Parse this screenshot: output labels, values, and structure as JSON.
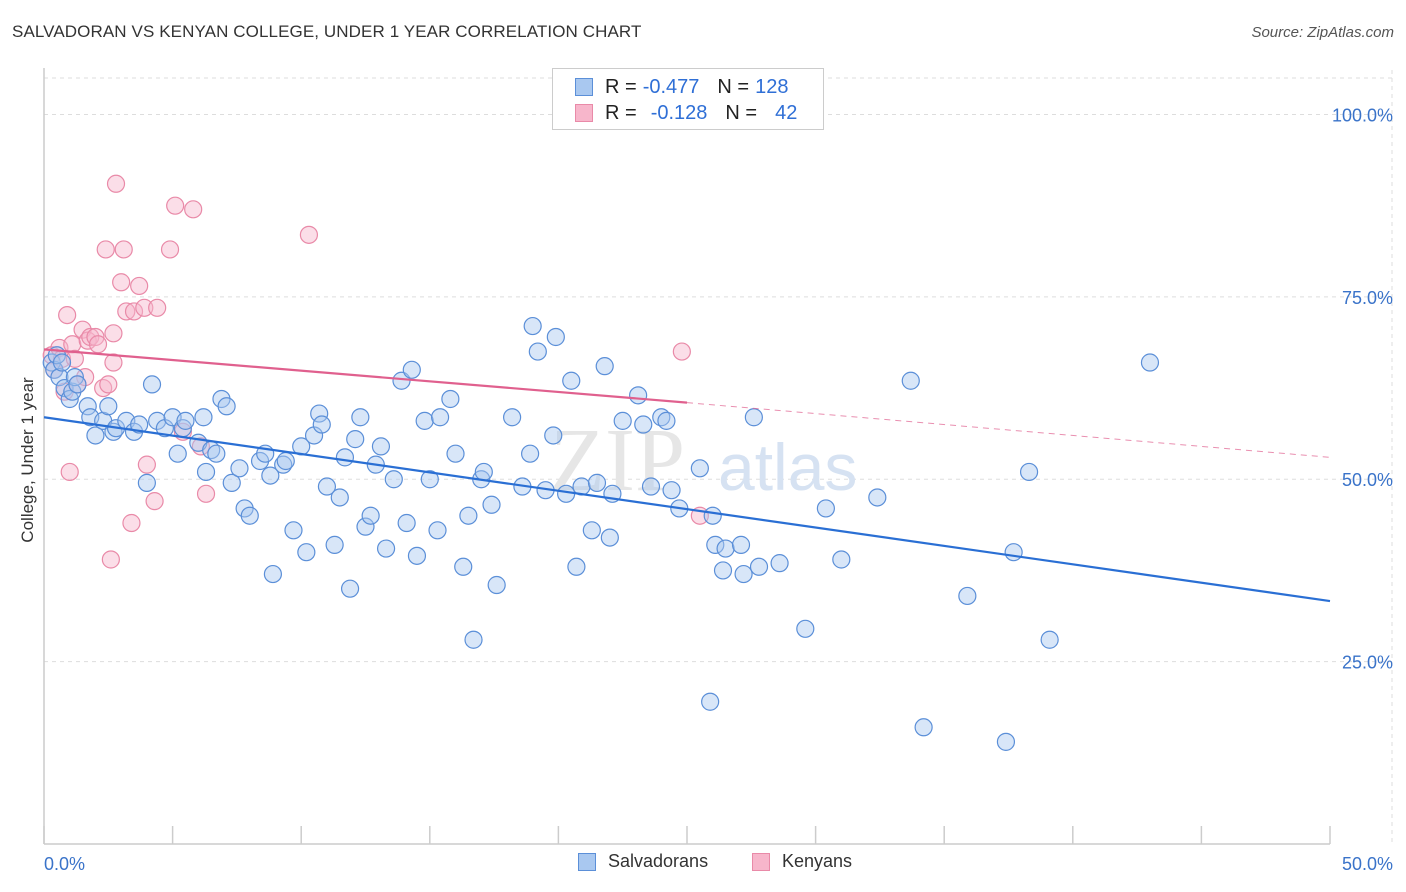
{
  "title": "SALVADORAN VS KENYAN COLLEGE, UNDER 1 YEAR CORRELATION CHART",
  "source": "Source: ZipAtlas.com",
  "watermark": {
    "zip": "ZIP",
    "atlas": "atlas"
  },
  "colors": {
    "blue_fill": "#a9c8f0",
    "blue_stroke": "#5b8fd8",
    "blue_line": "#2a6fd4",
    "pink_fill": "#f7b6cb",
    "pink_stroke": "#e98aa8",
    "pink_line": "#e0608e",
    "tick_label": "#3a73c9",
    "grid": "#dddddd"
  },
  "legend": {
    "rows": [
      {
        "r_label": "R =",
        "r_value": "-0.477",
        "n_label": "N =",
        "n_value": "128"
      },
      {
        "r_label": "R =",
        "r_value": "-0.128",
        "n_label": "N =",
        "n_value": "42"
      }
    ]
  },
  "bottom_legend": [
    "Salvadorans",
    "Kenyans"
  ],
  "chart_data": {
    "type": "scatter",
    "title": "SALVADORAN VS KENYAN COLLEGE, UNDER 1 YEAR CORRELATION CHART",
    "xlabel": "",
    "ylabel": "College, Under 1 year",
    "xlim": [
      0,
      50
    ],
    "ylim": [
      0,
      105
    ],
    "x_tick_labels": [
      "0.0%",
      "50.0%"
    ],
    "y_ticks": [
      25,
      50,
      75,
      100
    ],
    "y_tick_labels": [
      "25.0%",
      "50.0%",
      "75.0%",
      "100.0%"
    ],
    "series": [
      {
        "name": "Salvadorans",
        "r": -0.477,
        "n": 128,
        "trend": {
          "x": [
            0,
            50
          ],
          "y": [
            58.5,
            33.3
          ]
        },
        "points": [
          [
            0.3,
            66
          ],
          [
            0.4,
            65
          ],
          [
            0.5,
            67
          ],
          [
            0.6,
            64
          ],
          [
            0.7,
            66
          ],
          [
            0.8,
            62.5
          ],
          [
            1.0,
            61
          ],
          [
            1.1,
            62
          ],
          [
            1.2,
            64
          ],
          [
            1.3,
            63
          ],
          [
            1.7,
            60
          ],
          [
            1.8,
            58.5
          ],
          [
            2.0,
            56
          ],
          [
            2.3,
            58
          ],
          [
            2.5,
            60
          ],
          [
            2.7,
            56.5
          ],
          [
            2.8,
            57
          ],
          [
            3.2,
            58
          ],
          [
            3.5,
            56.5
          ],
          [
            3.7,
            57.5
          ],
          [
            4.0,
            49.5
          ],
          [
            4.2,
            63
          ],
          [
            4.4,
            58
          ],
          [
            4.7,
            57
          ],
          [
            5.0,
            58.5
          ],
          [
            5.2,
            53.5
          ],
          [
            5.4,
            57
          ],
          [
            5.5,
            58
          ],
          [
            6.0,
            55
          ],
          [
            6.2,
            58.5
          ],
          [
            6.3,
            51
          ],
          [
            6.5,
            54
          ],
          [
            6.7,
            53.5
          ],
          [
            6.9,
            61
          ],
          [
            7.1,
            60
          ],
          [
            7.3,
            49.5
          ],
          [
            7.6,
            51.5
          ],
          [
            7.8,
            46
          ],
          [
            8.0,
            45
          ],
          [
            8.4,
            52.5
          ],
          [
            8.6,
            53.5
          ],
          [
            8.8,
            50.5
          ],
          [
            8.9,
            37
          ],
          [
            9.3,
            52
          ],
          [
            9.4,
            52.5
          ],
          [
            9.7,
            43
          ],
          [
            10.0,
            54.5
          ],
          [
            10.2,
            40
          ],
          [
            10.5,
            56
          ],
          [
            10.7,
            59
          ],
          [
            10.8,
            57.5
          ],
          [
            11.0,
            49
          ],
          [
            11.3,
            41
          ],
          [
            11.5,
            47.5
          ],
          [
            11.7,
            53
          ],
          [
            11.9,
            35
          ],
          [
            12.1,
            55.5
          ],
          [
            12.3,
            58.5
          ],
          [
            12.5,
            43.5
          ],
          [
            12.7,
            45
          ],
          [
            12.9,
            52
          ],
          [
            13.1,
            54.5
          ],
          [
            13.3,
            40.5
          ],
          [
            13.6,
            50
          ],
          [
            13.9,
            63.5
          ],
          [
            14.1,
            44
          ],
          [
            14.3,
            65
          ],
          [
            14.5,
            39.5
          ],
          [
            14.8,
            58
          ],
          [
            15.0,
            50
          ],
          [
            15.3,
            43
          ],
          [
            15.4,
            58.5
          ],
          [
            15.8,
            61
          ],
          [
            16.0,
            53.5
          ],
          [
            16.3,
            38
          ],
          [
            16.5,
            45
          ],
          [
            16.7,
            28
          ],
          [
            17.0,
            50
          ],
          [
            17.1,
            51
          ],
          [
            17.4,
            46.5
          ],
          [
            17.6,
            35.5
          ],
          [
            18.2,
            58.5
          ],
          [
            18.6,
            49
          ],
          [
            18.9,
            53.5
          ],
          [
            19.0,
            71
          ],
          [
            19.2,
            67.5
          ],
          [
            19.5,
            48.5
          ],
          [
            19.8,
            56
          ],
          [
            19.9,
            69.5
          ],
          [
            20.3,
            48
          ],
          [
            20.5,
            63.5
          ],
          [
            20.7,
            38
          ],
          [
            20.9,
            49
          ],
          [
            21.3,
            43
          ],
          [
            21.5,
            49.5
          ],
          [
            21.8,
            65.5
          ],
          [
            22.0,
            42
          ],
          [
            22.1,
            48
          ],
          [
            22.5,
            58
          ],
          [
            23.1,
            61.5
          ],
          [
            23.3,
            57.5
          ],
          [
            23.6,
            49
          ],
          [
            24.0,
            58.5
          ],
          [
            24.2,
            58
          ],
          [
            24.4,
            48.5
          ],
          [
            24.7,
            46
          ],
          [
            25.5,
            51.5
          ],
          [
            25.9,
            19.5
          ],
          [
            26.0,
            45
          ],
          [
            26.1,
            41
          ],
          [
            26.4,
            37.5
          ],
          [
            26.5,
            40.5
          ],
          [
            27.1,
            41
          ],
          [
            27.2,
            37
          ],
          [
            27.6,
            58.5
          ],
          [
            27.8,
            38
          ],
          [
            28.6,
            38.5
          ],
          [
            29.6,
            29.5
          ],
          [
            30.4,
            46
          ],
          [
            31.0,
            39
          ],
          [
            32.4,
            47.5
          ],
          [
            33.7,
            63.5
          ],
          [
            34.2,
            16
          ],
          [
            35.9,
            34
          ],
          [
            37.4,
            14
          ],
          [
            37.7,
            40
          ],
          [
            38.3,
            51
          ],
          [
            39.1,
            28
          ],
          [
            43.0,
            66
          ]
        ]
      },
      {
        "name": "Kenyans",
        "r": -0.128,
        "n": 42,
        "trend": {
          "x": [
            0,
            25
          ],
          "y": [
            67.8,
            60.5
          ]
        },
        "trend_dashed": {
          "x": [
            25,
            50
          ],
          "y": [
            60.5,
            53.0
          ]
        },
        "points": [
          [
            0.3,
            67
          ],
          [
            0.4,
            65
          ],
          [
            0.6,
            68
          ],
          [
            0.7,
            66.5
          ],
          [
            0.8,
            62
          ],
          [
            0.9,
            72.5
          ],
          [
            1.0,
            51
          ],
          [
            1.1,
            68.5
          ],
          [
            1.3,
            63
          ],
          [
            1.5,
            70.5
          ],
          [
            1.6,
            64
          ],
          [
            1.7,
            69
          ],
          [
            1.8,
            69.5
          ],
          [
            2.0,
            69.5
          ],
          [
            2.1,
            68.5
          ],
          [
            2.3,
            62.5
          ],
          [
            2.4,
            81.5
          ],
          [
            2.5,
            63
          ],
          [
            2.6,
            39
          ],
          [
            2.7,
            70
          ],
          [
            2.7,
            66
          ],
          [
            2.8,
            90.5
          ],
          [
            3.0,
            77
          ],
          [
            3.1,
            81.5
          ],
          [
            3.2,
            73
          ],
          [
            3.4,
            44
          ],
          [
            3.5,
            73
          ],
          [
            3.7,
            76.5
          ],
          [
            3.9,
            73.5
          ],
          [
            4.0,
            52
          ],
          [
            4.3,
            47
          ],
          [
            4.4,
            73.5
          ],
          [
            4.9,
            81.5
          ],
          [
            5.1,
            87.5
          ],
          [
            5.4,
            56.5
          ],
          [
            5.8,
            87
          ],
          [
            6.1,
            54.5
          ],
          [
            6.3,
            48
          ],
          [
            10.3,
            83.5
          ],
          [
            24.8,
            67.5
          ],
          [
            25.5,
            45
          ],
          [
            1.2,
            66.5
          ]
        ]
      }
    ]
  }
}
